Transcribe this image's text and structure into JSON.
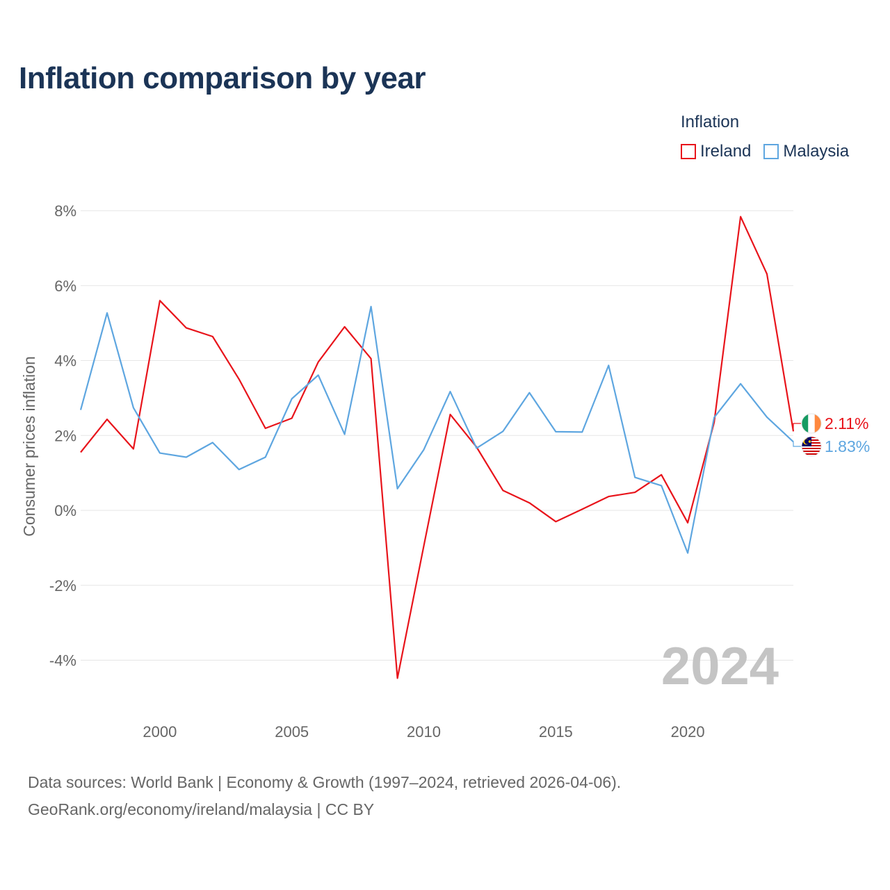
{
  "title": "Inflation comparison by year",
  "legend": {
    "title": "Inflation",
    "items": [
      {
        "name": "Ireland",
        "color": "#e8141b"
      },
      {
        "name": "Malaysia",
        "color": "#5ea6e0"
      }
    ]
  },
  "source": {
    "line1": "Data sources: World Bank | Economy & Growth (1997–2024, retrieved 2026-04-06).",
    "line2": "GeoRank.org/economy/ireland/malaysia | CC BY"
  },
  "chart_data": {
    "type": "line",
    "title": "Inflation comparison by year",
    "xlabel": "",
    "ylabel": "Consumer prices inflation",
    "xlim": [
      1997,
      2024
    ],
    "ylim": [
      -5,
      8
    ],
    "y_ticks": [
      8,
      6,
      4,
      2,
      0,
      -2,
      -4
    ],
    "y_tick_labels": [
      "8%",
      "6%",
      "4%",
      "2%",
      "0%",
      "-2%",
      "-4%"
    ],
    "x_ticks": [
      2000,
      2005,
      2010,
      2015,
      2020
    ],
    "x_tick_labels": [
      "2000",
      "2005",
      "2010",
      "2015",
      "2020"
    ],
    "grid": true,
    "year_watermark": "2024",
    "x": [
      1997,
      1998,
      1999,
      2000,
      2001,
      2002,
      2003,
      2004,
      2005,
      2006,
      2007,
      2008,
      2009,
      2010,
      2011,
      2012,
      2013,
      2014,
      2015,
      2016,
      2017,
      2018,
      2019,
      2020,
      2021,
      2022,
      2023,
      2024
    ],
    "series": [
      {
        "name": "Ireland",
        "color": "#e8141b",
        "end_label": "2.11%",
        "flag": "ireland-flag-icon",
        "values": [
          1.55,
          2.43,
          1.64,
          5.6,
          4.87,
          4.64,
          3.5,
          2.19,
          2.46,
          3.96,
          4.9,
          4.05,
          -4.48,
          -0.95,
          2.56,
          1.69,
          0.53,
          0.2,
          -0.3,
          0.03,
          0.37,
          0.48,
          0.95,
          -0.33,
          2.35,
          7.84,
          6.31,
          2.11
        ]
      },
      {
        "name": "Malaysia",
        "color": "#5ea6e0",
        "end_label": "1.83%",
        "flag": "malaysia-flag-icon",
        "values": [
          2.68,
          5.27,
          2.74,
          1.53,
          1.42,
          1.81,
          1.09,
          1.42,
          2.98,
          3.61,
          2.03,
          5.44,
          0.58,
          1.62,
          3.17,
          1.66,
          2.11,
          3.14,
          2.1,
          2.09,
          3.87,
          0.88,
          0.66,
          -1.14,
          2.48,
          3.38,
          2.49,
          1.83
        ]
      }
    ]
  }
}
